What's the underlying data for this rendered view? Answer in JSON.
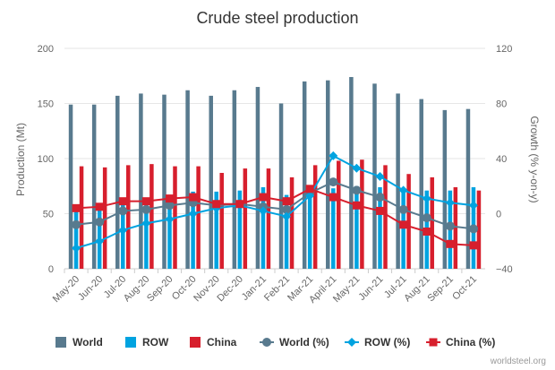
{
  "chart_data": {
    "type": "bar",
    "title": "Crude steel production",
    "credit": "worldsteel.org",
    "categories": [
      "May-20",
      "Jun-20",
      "Jul-20",
      "Aug-20",
      "Sep-20",
      "Oct-20",
      "Nov-20",
      "Dec-20",
      "Jan-21",
      "Feb-21",
      "Mar-21",
      "April-21",
      "May-21",
      "Jun-21",
      "Jul-21",
      "Aug-21",
      "Sep-21",
      "Oct-21"
    ],
    "y_left": {
      "label": "Production (Mt)",
      "min": 0,
      "max": 200,
      "ticks": [
        "0",
        "50",
        "100",
        "150",
        "200"
      ]
    },
    "y_right": {
      "label": "Growth (% y-on-y)",
      "min": -40,
      "max": 120,
      "ticks": [
        "−40",
        "0",
        "40",
        "80",
        "120"
      ]
    },
    "grid": true,
    "legend_position": "bottom",
    "series": [
      {
        "name": "World",
        "kind": "bar",
        "axis": "left",
        "color": "#587a8e",
        "icon": "square",
        "values": [
          149,
          149,
          157,
          159,
          158,
          162,
          157,
          162,
          165,
          150,
          170,
          171,
          174,
          168,
          159,
          154,
          144,
          145
        ]
      },
      {
        "name": "ROW",
        "kind": "bar",
        "axis": "left",
        "color": "#00a3e0",
        "icon": "square",
        "values": [
          56,
          57,
          62,
          63,
          65,
          70,
          70,
          71,
          74,
          67,
          76,
          73,
          75,
          74,
          73,
          71,
          71,
          74
        ]
      },
      {
        "name": "China",
        "kind": "bar",
        "axis": "left",
        "color": "#d71f2d",
        "icon": "square",
        "values": [
          93,
          92,
          94,
          95,
          93,
          93,
          87,
          91,
          91,
          83,
          94,
          98,
          99,
          94,
          86,
          83,
          74,
          71
        ]
      },
      {
        "name": "World (%)",
        "kind": "line",
        "axis": "right",
        "color": "#587a8e",
        "marker": "circle",
        "values": [
          -8,
          -6,
          2,
          3,
          6,
          8,
          6,
          7,
          5,
          3,
          15,
          23,
          17,
          12,
          3,
          -3,
          -9,
          -11
        ]
      },
      {
        "name": "ROW (%)",
        "kind": "line",
        "axis": "right",
        "color": "#00a3e0",
        "marker": "diamond",
        "values": [
          -25,
          -20,
          -12,
          -7,
          -4,
          0,
          4,
          6,
          2,
          -2,
          13,
          42,
          33,
          27,
          17,
          11,
          8,
          6
        ]
      },
      {
        "name": "China (%)",
        "kind": "line",
        "axis": "right",
        "color": "#d71f2d",
        "marker": "square",
        "values": [
          4,
          5,
          9,
          9,
          11,
          12,
          7,
          7,
          12,
          9,
          18,
          12,
          6,
          2,
          -8,
          -13,
          -22,
          -23
        ]
      }
    ]
  }
}
